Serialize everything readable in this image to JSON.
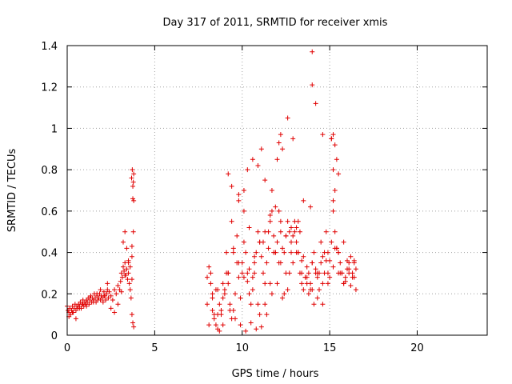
{
  "chart_data": {
    "type": "scatter",
    "title": "Day 317 of 2011, SRMTID for receiver xmis",
    "xlabel": "GPS time / hours",
    "ylabel": "SRMTID / TECUs",
    "xlim": [
      0,
      24
    ],
    "ylim": [
      0,
      1.4
    ],
    "xticks": [
      0,
      5,
      10,
      15,
      20
    ],
    "xtick_labels": [
      "0",
      "5",
      "10",
      "15",
      "20"
    ],
    "yticks": [
      0,
      0.2,
      0.4,
      0.6,
      0.8,
      1.0,
      1.2,
      1.4
    ],
    "ytick_labels": [
      "0",
      "0.2",
      "0.4",
      "0.6",
      "0.8",
      "1",
      "1.2",
      "1.4"
    ],
    "grid": true,
    "marker": "+",
    "color": "#e00000",
    "series": [
      {
        "name": "SRMTID",
        "x": [
          0.0,
          0.05,
          0.1,
          0.15,
          0.2,
          0.25,
          0.3,
          0.35,
          0.4,
          0.45,
          0.5,
          0.55,
          0.6,
          0.65,
          0.7,
          0.75,
          0.8,
          0.85,
          0.9,
          0.95,
          1.0,
          1.05,
          1.1,
          1.15,
          1.2,
          1.25,
          1.3,
          1.35,
          1.4,
          1.45,
          1.5,
          1.55,
          1.6,
          1.65,
          1.7,
          1.75,
          1.8,
          1.85,
          1.9,
          1.95,
          2.0,
          2.05,
          2.1,
          2.15,
          2.2,
          2.25,
          2.3,
          2.35,
          2.4,
          2.5,
          2.6,
          2.7,
          2.8,
          2.9,
          3.0,
          3.05,
          3.1,
          3.15,
          3.2,
          3.25,
          3.3,
          3.35,
          3.4,
          3.45,
          3.5,
          3.55,
          3.6,
          3.65,
          3.7,
          3.75,
          3.8,
          0.1,
          0.3,
          0.5,
          0.7,
          0.9,
          1.1,
          1.3,
          1.5,
          1.7,
          1.9,
          2.1,
          2.3,
          2.5,
          2.7,
          2.9,
          3.1,
          3.3,
          3.5,
          3.7,
          3.2,
          3.3,
          3.4,
          3.5,
          3.6,
          3.7,
          3.75,
          3.78,
          3.8,
          3.72,
          3.68,
          3.75,
          3.8,
          3.78,
          3.7,
          8.0,
          8.1,
          8.2,
          8.3,
          8.4,
          8.5,
          8.6,
          8.7,
          8.8,
          8.9,
          9.0,
          9.1,
          9.2,
          9.3,
          9.4,
          9.5,
          9.6,
          9.7,
          9.8,
          9.9,
          10.0,
          10.1,
          10.2,
          10.3,
          10.4,
          10.5,
          10.6,
          10.7,
          10.8,
          10.9,
          11.0,
          11.1,
          11.2,
          11.3,
          11.4,
          11.5,
          11.6,
          11.7,
          11.8,
          11.9,
          12.0,
          12.1,
          12.2,
          12.3,
          12.4,
          12.5,
          12.6,
          12.7,
          12.8,
          12.9,
          13.0,
          13.1,
          13.2,
          13.3,
          13.4,
          13.5,
          13.6,
          13.7,
          13.8,
          13.9,
          14.0,
          14.1,
          14.2,
          14.3,
          14.4,
          14.5,
          14.6,
          14.7,
          14.8,
          14.9,
          15.0,
          15.1,
          15.2,
          15.3,
          15.4,
          15.5,
          15.6,
          15.7,
          15.8,
          15.9,
          16.0,
          16.1,
          16.2,
          16.3,
          16.4,
          16.5,
          8.2,
          8.5,
          8.8,
          9.1,
          9.4,
          9.7,
          10.0,
          10.3,
          10.6,
          10.9,
          11.2,
          11.5,
          11.8,
          12.1,
          12.4,
          12.7,
          13.0,
          13.3,
          13.6,
          13.9,
          14.2,
          14.5,
          14.8,
          15.1,
          15.4,
          15.7,
          16.0,
          16.3,
          8.3,
          8.6,
          8.9,
          9.2,
          9.5,
          9.8,
          10.1,
          10.4,
          10.7,
          11.0,
          11.3,
          11.6,
          11.9,
          12.2,
          12.5,
          12.8,
          13.1,
          13.4,
          13.7,
          14.0,
          14.3,
          14.6,
          14.9,
          15.2,
          15.5,
          15.8,
          16.1,
          16.4,
          9.2,
          9.4,
          9.8,
          10.1,
          10.3,
          10.6,
          10.9,
          11.1,
          11.3,
          11.7,
          12.0,
          12.1,
          12.2,
          12.3,
          12.6,
          12.9,
          13.2,
          13.5,
          13.9,
          14.0,
          14.0,
          14.2,
          14.6,
          15.1,
          15.2,
          15.3,
          15.4,
          15.5,
          15.3,
          15.2,
          8.1,
          8.4,
          8.7,
          9.0,
          9.3,
          9.6,
          9.9,
          10.2,
          10.5,
          10.8,
          11.1,
          11.4,
          11.7,
          12.0,
          12.3,
          12.6,
          12.9,
          13.2,
          13.5,
          13.8,
          14.1,
          14.4,
          14.7,
          15.0,
          15.3,
          15.6,
          15.9,
          16.2,
          16.5,
          8.0,
          8.3,
          8.6,
          8.9,
          9.2,
          9.5,
          9.8,
          10.1,
          10.4,
          10.7,
          11.0,
          11.3,
          11.6,
          11.9,
          12.2,
          12.5,
          12.8,
          13.1,
          13.4,
          13.7,
          14.0,
          14.3,
          14.6,
          14.9,
          15.2,
          15.5,
          15.8,
          16.1,
          16.4
        ],
        "y": [
          0.14,
          0.12,
          0.11,
          0.13,
          0.1,
          0.12,
          0.14,
          0.11,
          0.13,
          0.15,
          0.12,
          0.14,
          0.13,
          0.15,
          0.14,
          0.16,
          0.13,
          0.15,
          0.17,
          0.14,
          0.16,
          0.15,
          0.17,
          0.16,
          0.18,
          0.15,
          0.17,
          0.19,
          0.16,
          0.18,
          0.17,
          0.2,
          0.18,
          0.16,
          0.19,
          0.17,
          0.18,
          0.2,
          0.17,
          0.19,
          0.18,
          0.16,
          0.21,
          0.19,
          0.17,
          0.2,
          0.22,
          0.18,
          0.21,
          0.19,
          0.17,
          0.22,
          0.2,
          0.24,
          0.22,
          0.26,
          0.3,
          0.28,
          0.33,
          0.31,
          0.35,
          0.29,
          0.32,
          0.27,
          0.3,
          0.25,
          0.22,
          0.18,
          0.1,
          0.06,
          0.04,
          0.09,
          0.11,
          0.08,
          0.13,
          0.15,
          0.14,
          0.18,
          0.16,
          0.2,
          0.22,
          0.19,
          0.25,
          0.13,
          0.11,
          0.15,
          0.21,
          0.29,
          0.35,
          0.38,
          0.45,
          0.5,
          0.42,
          0.36,
          0.33,
          0.27,
          0.66,
          0.74,
          0.78,
          0.8,
          0.76,
          0.72,
          0.65,
          0.5,
          0.43,
          0.15,
          0.33,
          0.25,
          0.12,
          0.08,
          0.05,
          0.03,
          0.02,
          0.1,
          0.18,
          0.22,
          0.3,
          0.25,
          0.15,
          0.08,
          0.12,
          0.2,
          0.35,
          0.28,
          0.18,
          0.3,
          0.45,
          0.4,
          0.26,
          0.2,
          0.15,
          0.28,
          0.35,
          0.4,
          0.5,
          0.45,
          0.38,
          0.3,
          0.25,
          0.35,
          0.42,
          0.55,
          0.6,
          0.48,
          0.4,
          0.45,
          0.6,
          0.5,
          0.42,
          0.4,
          0.48,
          0.55,
          0.5,
          0.52,
          0.48,
          0.5,
          0.45,
          0.4,
          0.3,
          0.25,
          0.22,
          0.28,
          0.33,
          0.3,
          0.25,
          0.35,
          0.4,
          0.32,
          0.28,
          0.3,
          0.35,
          0.38,
          0.4,
          0.36,
          0.3,
          0.28,
          0.45,
          0.6,
          0.5,
          0.42,
          0.4,
          0.35,
          0.3,
          0.25,
          0.28,
          0.32,
          0.35,
          0.38,
          0.3,
          0.28,
          0.32,
          0.3,
          0.22,
          0.12,
          0.4,
          0.55,
          0.48,
          0.35,
          0.3,
          0.22,
          0.15,
          0.45,
          0.5,
          0.4,
          0.35,
          0.2,
          0.3,
          0.55,
          0.5,
          0.28,
          0.22,
          0.3,
          0.45,
          0.5,
          0.95,
          0.42,
          0.3,
          0.36,
          0.28,
          0.2,
          0.1,
          0.05,
          0.3,
          0.4,
          0.65,
          0.6,
          0.52,
          0.3,
          0.1,
          0.15,
          0.25,
          0.4,
          0.35,
          0.3,
          0.4,
          0.52,
          0.3,
          0.25,
          0.35,
          0.3,
          0.25,
          0.4,
          0.8,
          0.3,
          0.25,
          0.32,
          0.36,
          0.78,
          0.72,
          0.68,
          0.7,
          0.8,
          0.85,
          0.82,
          0.9,
          0.75,
          0.7,
          0.85,
          0.93,
          0.97,
          0.9,
          1.05,
          0.95,
          0.55,
          0.65,
          0.62,
          1.37,
          1.21,
          1.12,
          0.97,
          0.95,
          0.97,
          0.92,
          0.85,
          0.78,
          0.7,
          0.65,
          0.05,
          0.1,
          0.15,
          0.2,
          0.12,
          0.08,
          0.05,
          0.02,
          0.06,
          0.03,
          0.04,
          0.1,
          0.2,
          0.25,
          0.18,
          0.22,
          0.35,
          0.4,
          0.38,
          0.2,
          0.15,
          0.22,
          0.3,
          0.36,
          0.42,
          0.3,
          0.26,
          0.24,
          0.22,
          0.28,
          0.18,
          0.22,
          0.25,
          0.3,
          0.42,
          0.35,
          0.28,
          0.32,
          0.38,
          0.45,
          0.5,
          0.58,
          0.62,
          0.55,
          0.48,
          0.45,
          0.4,
          0.36,
          0.28,
          0.22,
          0.18,
          0.15,
          0.25,
          0.33,
          0.4,
          0.45,
          0.3,
          0.35
        ]
      }
    ]
  }
}
